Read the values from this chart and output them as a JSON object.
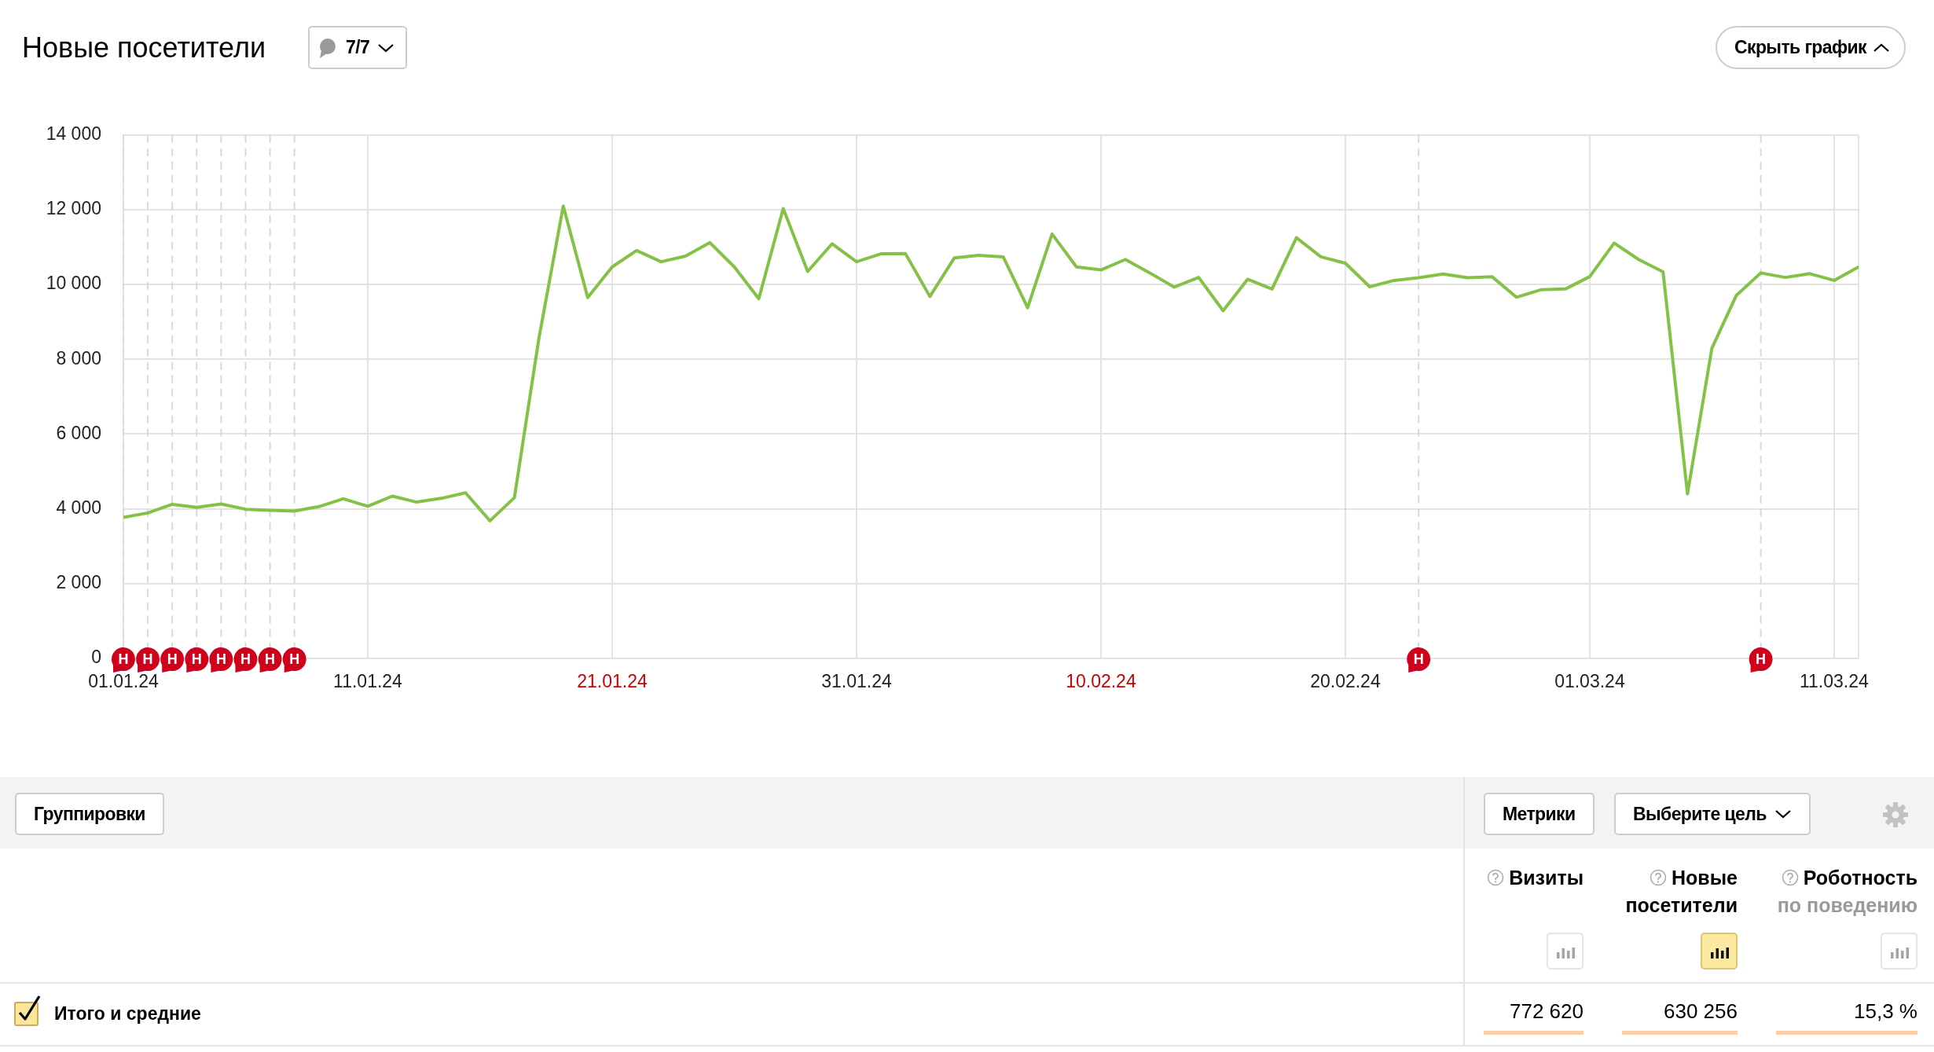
{
  "chart_data": [
    {
      "type": "line",
      "title": "Новые посетители",
      "annotations": [
        "7/7",
        "Скрыть график"
      ],
      "x": [
        "--01-01",
        "--01-02",
        "--01-03",
        "--01-04",
        "--01-05",
        "--01-06",
        "--01-07",
        "--01-08",
        "--01-09",
        "--01-10",
        "--01-11",
        "--01-12",
        "--01-13",
        "--01-14",
        "--01-15",
        "--01-16",
        "--01-17",
        "--01-18",
        "--01-19",
        "--01-20",
        "--01-21",
        "--01-22",
        "--01-23",
        "--01-24",
        "--01-25",
        "--01-26",
        "--01-27",
        "--01-28",
        "--01-29",
        "--01-30",
        "--01-31",
        "--02-01",
        "--02-02",
        "--02-03",
        "--02-04",
        "--02-05",
        "--02-06",
        "--02-07",
        "--02-08",
        "--02-09",
        "--02-10",
        "--02-11",
        "--02-12",
        "--02-13",
        "--02-14",
        "--02-15",
        "--02-16",
        "--02-17",
        "--02-18",
        "--02-19",
        "--02-20",
        "--02-21",
        "--02-22",
        "--02-23",
        "--02-24",
        "--02-25",
        "--02-26",
        "--02-27",
        "--02-28",
        "--02-29",
        "--03-01",
        "--03-02",
        "--03-03",
        "--03-04",
        "--03-05",
        "--03-06",
        "--03-07",
        "--03-08",
        "--03-09",
        "--03-10",
        "--03-11",
        "--03-12"
      ],
      "values": [
        3770,
        3890,
        4120,
        4040,
        4130,
        3990,
        3960,
        3940,
        4060,
        4270,
        4070,
        4340,
        4180,
        4280,
        4430,
        3680,
        4300,
        8550,
        12100,
        9650,
        10470,
        10910,
        10610,
        10760,
        11120,
        10470,
        9620,
        12030,
        10350,
        11090,
        10610,
        10820,
        10830,
        9680,
        10710,
        10780,
        10740,
        9380,
        11350,
        10470,
        10390,
        10670,
        10310,
        9930,
        10190,
        9300,
        10140,
        9880,
        11250,
        10740,
        10570,
        9940,
        10110,
        10180,
        10280,
        10180,
        10210,
        9660,
        9860,
        9880,
        10210,
        11110,
        10670,
        10340,
        4400,
        8300,
        9710,
        10310,
        10190,
        10290,
        10110,
        10470
      ],
      "color": "#84c247",
      "xlim": [
        "--01-01",
        "--03-12"
      ],
      "xticks": [
        {
          "value": "--01-01",
          "label": "01.01.24"
        },
        {
          "value": "--01-11",
          "label": "11.01.24"
        },
        {
          "value": "--01-21",
          "label": "21.01.24"
        },
        {
          "value": "--01-31",
          "label": "31.01.24"
        },
        {
          "value": "--02-10",
          "label": "10.02.24"
        },
        {
          "value": "--02-20",
          "label": "20.02.24"
        },
        {
          "value": "--03-01",
          "label": "01.03.24"
        },
        {
          "value": "--03-11",
          "label": "11.03.24"
        }
      ],
      "ylim": [
        0,
        14000
      ],
      "yticks": [
        0,
        {
          "value": 2000,
          "label": "2 000"
        },
        {
          "value": 4000,
          "label": "4 000"
        },
        {
          "value": 6000,
          "label": "6 000"
        },
        {
          "value": 8000,
          "label": "8 000"
        },
        {
          "value": 10000,
          "label": "10 000"
        },
        {
          "value": 12000,
          "label": "12 000"
        },
        {
          "value": 14000,
          "label": "14 000"
        }
      ],
      "ref_lines": [
        {
          "axis": "x",
          "value": "--01-01",
          "label": "Н",
          "color": "#d9d9d9",
          "line_style": "dashed"
        },
        {
          "axis": "x",
          "value": "--01-02",
          "label": "Н",
          "color": "#d9d9d9",
          "line_style": "dashed"
        },
        {
          "axis": "x",
          "value": "--01-03",
          "label": "Н",
          "color": "#d9d9d9",
          "line_style": "dashed"
        },
        {
          "axis": "x",
          "value": "--01-04",
          "label": "Н",
          "color": "#d9d9d9",
          "line_style": "dashed"
        },
        {
          "axis": "x",
          "value": "--01-05",
          "label": "Н",
          "color": "#d9d9d9",
          "line_style": "dashed"
        },
        {
          "axis": "x",
          "value": "--01-06",
          "label": "Н",
          "color": "#d9d9d9",
          "line_style": "dashed"
        },
        {
          "axis": "x",
          "value": "--01-07",
          "label": "Н",
          "color": "#d9d9d9",
          "line_style": "dashed"
        },
        {
          "axis": "x",
          "value": "--01-08",
          "label": "Н",
          "color": "#d9d9d9",
          "line_style": "dashed"
        },
        {
          "axis": "x",
          "value": "--02-23",
          "label": "Н",
          "color": "#d9d9d9",
          "line_style": "dashed"
        },
        {
          "axis": "x",
          "value": "--03-08",
          "label": "Н",
          "color": "#d9d9d9",
          "line_style": "dashed"
        }
      ],
      "grid": true,
      "legend": false,
      "marker": "none"
    },
    {
      "type": "other",
      "annotations": [
        "Группировки",
        "Метрики",
        "Выберите цель",
        "Визиты",
        "Новые посетители",
        "Роботность по поведению",
        "Итого и средние",
        "772 620",
        "630 256",
        "15,3 %"
      ]
    }
  ]
}
